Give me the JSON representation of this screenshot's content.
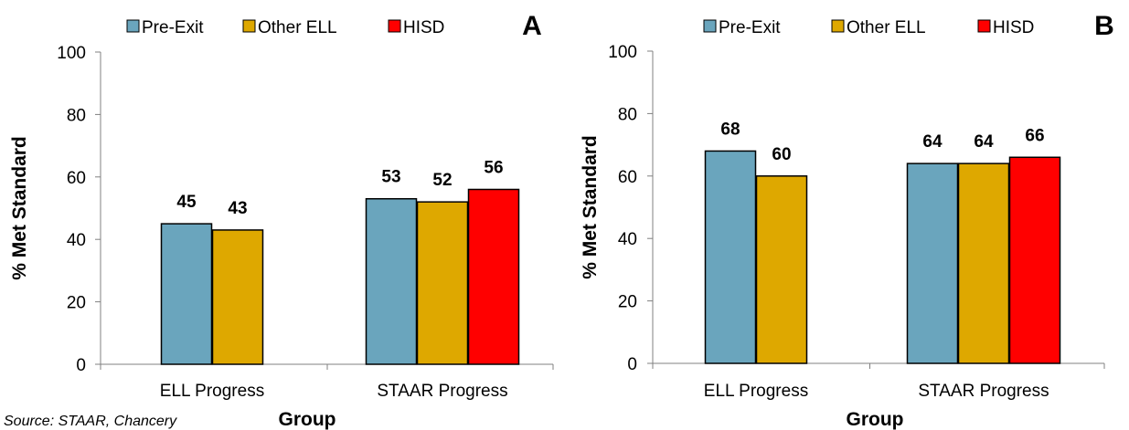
{
  "source": "Source: STAAR, Chancery",
  "chart_data": [
    {
      "type": "bar",
      "panel": "A",
      "categories": [
        "ELL Progress",
        "STAAR Progress"
      ],
      "series": [
        {
          "name": "Pre-Exit",
          "color": "#6aa5bd",
          "values": [
            45,
            53
          ]
        },
        {
          "name": "Other ELL",
          "color": "#dea800",
          "values": [
            43,
            52
          ]
        },
        {
          "name": "HISD",
          "color": "#ff0000",
          "values": [
            null,
            56
          ]
        }
      ],
      "xlabel": "Group",
      "ylabel": "% Met Standard",
      "ylim": [
        0,
        100
      ],
      "yticks": [
        0,
        20,
        40,
        60,
        80,
        100
      ],
      "legend": "top",
      "grid": false
    },
    {
      "type": "bar",
      "panel": "B",
      "categories": [
        "ELL Progress",
        "STAAR Progress"
      ],
      "series": [
        {
          "name": "Pre-Exit",
          "color": "#6aa5bd",
          "values": [
            68,
            64
          ]
        },
        {
          "name": "Other ELL",
          "color": "#dea800",
          "values": [
            60,
            64
          ]
        },
        {
          "name": "HISD",
          "color": "#ff0000",
          "values": [
            null,
            66
          ]
        }
      ],
      "xlabel": "Group",
      "ylabel": "% Met  Standard",
      "ylim": [
        0,
        100
      ],
      "yticks": [
        0,
        20,
        40,
        60,
        80,
        100
      ],
      "legend": "top",
      "grid": false
    }
  ]
}
